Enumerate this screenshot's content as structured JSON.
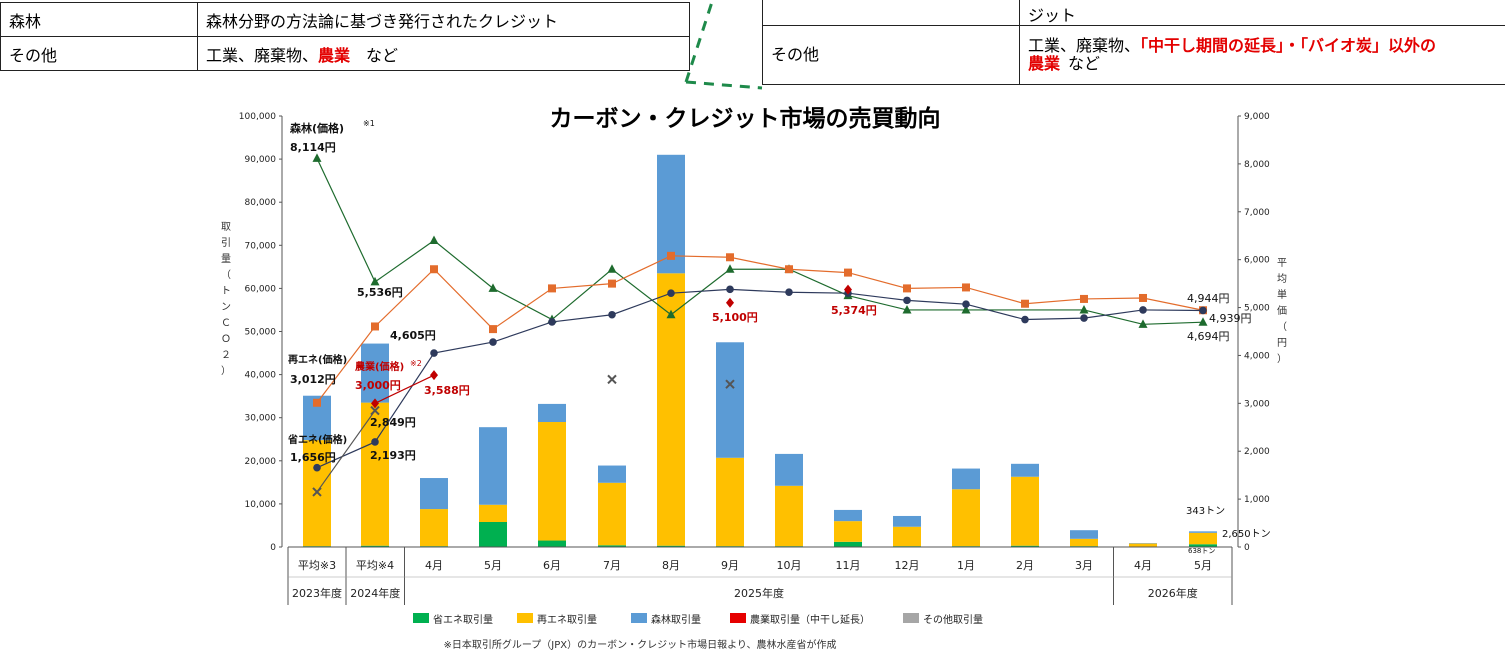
{
  "left_table": {
    "rows": [
      {
        "category": "森林",
        "desc": "森林分野の方法論に基づき発行されたクレジット"
      },
      {
        "category": "その他",
        "desc_pre": "工業、廃棄物、",
        "desc_red": "農業",
        "desc_post": "　など"
      }
    ]
  },
  "right_table": {
    "row0_desc": "ジット",
    "row1": {
      "category": "その他",
      "desc_pre": "工業、廃棄物、",
      "desc_red": "「中干し期間の延長」・「バイオ炭」以外の",
      "desc_red2": "農業",
      "desc_post": "など"
    }
  },
  "colors": {
    "shoene": "#5b9bd5",
    "saiene": "#ffc000",
    "shinrin": "#00b050",
    "nogyo": "#e60000",
    "other": "#a6a6a6",
    "price_forest": "#1e6b2e",
    "price_saiene": "#e36c2c",
    "price_shoene": "#2e3a5c",
    "price_nogyo": "#c00000"
  },
  "chart_data": {
    "type": "bar",
    "title": "カーボン・クレジット市場の売買動向",
    "ylabel_left": "取引量（トンＣＯ２）",
    "ylabel_right": "平均単価（円）",
    "y_left_range": [
      0,
      100000
    ],
    "y_left_ticks": [
      "0",
      "10,000",
      "20,000",
      "30,000",
      "40,000",
      "50,000",
      "60,000",
      "70,000",
      "80,000",
      "90,000",
      "100,000"
    ],
    "y_right_range": [
      0,
      9000
    ],
    "y_right_ticks": [
      "0",
      "1,000",
      "2,000",
      "3,000",
      "4,000",
      "5,000",
      "6,000",
      "7,000",
      "8,000",
      "9,000"
    ],
    "categories": [
      "平均※3",
      "平均※4",
      "4月",
      "5月",
      "6月",
      "7月",
      "8月",
      "9月",
      "10月",
      "11月",
      "12月",
      "1月",
      "2月",
      "3月",
      "4月",
      "5月"
    ],
    "year_labels": [
      {
        "label": "2023年度",
        "from": 0,
        "to": 0
      },
      {
        "label": "2024年度",
        "from": 1,
        "to": 1
      },
      {
        "label": "2025年度",
        "from": 2,
        "to": 13
      },
      {
        "label": "2026年度",
        "from": 14,
        "to": 15
      }
    ],
    "bar_series": [
      {
        "name": "森林取引量",
        "color": "#00b050",
        "values": [
          200,
          300,
          200,
          5800,
          1500,
          400,
          300,
          200,
          200,
          1200,
          200,
          200,
          300,
          200,
          100,
          638
        ]
      },
      {
        "name": "再エネ取引量",
        "color": "#ffc000",
        "values": [
          24600,
          33200,
          8600,
          4000,
          27500,
          14500,
          63200,
          20500,
          14000,
          4800,
          4500,
          13200,
          16000,
          1700,
          700,
          2650
        ]
      },
      {
        "name": "省エネ取引量",
        "color": "#5b9bd5",
        "values": [
          10300,
          13700,
          7200,
          18000,
          4200,
          4000,
          27500,
          26800,
          7400,
          2600,
          2500,
          4800,
          3000,
          2000,
          100,
          343
        ]
      },
      {
        "name": "農業取引量（中干し延長）",
        "color": "#e60000",
        "values": [
          0,
          0,
          0,
          0,
          0,
          0,
          0,
          0,
          0,
          0,
          0,
          0,
          0,
          0,
          0,
          0
        ]
      },
      {
        "name": "その他取引量",
        "color": "#a6a6a6",
        "values": [
          0,
          0,
          0,
          0,
          0,
          0,
          0,
          0,
          0,
          0,
          0,
          0,
          0,
          0,
          0,
          0
        ]
      }
    ],
    "line_series": [
      {
        "name": "森林(価格)",
        "color": "#1e6b2e",
        "marker": "triangle",
        "values": [
          8114,
          5536,
          6400,
          5400,
          4750,
          5800,
          4850,
          5800,
          5800,
          5250,
          4950,
          4950,
          null,
          4950,
          4650,
          4694
        ]
      },
      {
        "name": "再エネ(価格)",
        "color": "#e36c2c",
        "marker": "square",
        "values": [
          3012,
          4605,
          5800,
          4550,
          5400,
          5500,
          6080,
          6050,
          5800,
          5730,
          5400,
          5420,
          5080,
          5180,
          5200,
          4944
        ]
      },
      {
        "name": "省エネ(価格)",
        "color": "#2e3a5c",
        "marker": "circle",
        "values": [
          1656,
          2193,
          4050,
          4280,
          4700,
          4850,
          5300,
          5380,
          5320,
          5300,
          5150,
          5070,
          4750,
          4780,
          4950,
          4939
        ]
      },
      {
        "name": "農業(価格)",
        "color": "#c00000",
        "marker": "diamond",
        "values": [
          null,
          3000,
          3588,
          null,
          null,
          null,
          null,
          5100,
          null,
          5374,
          null,
          null,
          null,
          null,
          null,
          null
        ]
      },
      {
        "name": "その他(価格)",
        "color": "#555555",
        "marker": "x",
        "values": [
          1150,
          2849,
          null,
          null,
          null,
          3500,
          null,
          3400,
          null,
          null,
          null,
          null,
          null,
          null,
          null,
          null
        ]
      }
    ],
    "annotations": {
      "forest_label": "森林(価格)",
      "forest_sup": "※1",
      "forest_first": "8,114円",
      "forest_second": "5,536円",
      "saiene_label": "再エネ(価格)",
      "saiene_first": "3,012円",
      "saiene_second": "4,605円",
      "nogyo_label": "農業(価格)",
      "nogyo_sup": "※2",
      "nogyo_first": "3,000円",
      "nogyo_second": "3,588円",
      "nogyo_sep": "5,100円",
      "nogyo_nov": "5,374円",
      "shoene_label": "省エネ(価格)",
      "shoene_first": "1,656円",
      "shoene_second": "2,193円",
      "other_second": "2,849円",
      "last_saiene": "4,944円",
      "last_shoene": "4,939円",
      "last_forest": "4,694円",
      "last_bar_shoene": "343トン",
      "last_bar_saiene": "2,650トン",
      "last_bar_forest": "638トン"
    },
    "legend": [
      "省エネ取引量",
      "再エネ取引量",
      "森林取引量",
      "農業取引量（中干し延長）",
      "その他取引量"
    ],
    "source_note": "※日本取引所グループ（JPX）のカーボン・クレジット市場日報より、農林水産省が作成"
  }
}
